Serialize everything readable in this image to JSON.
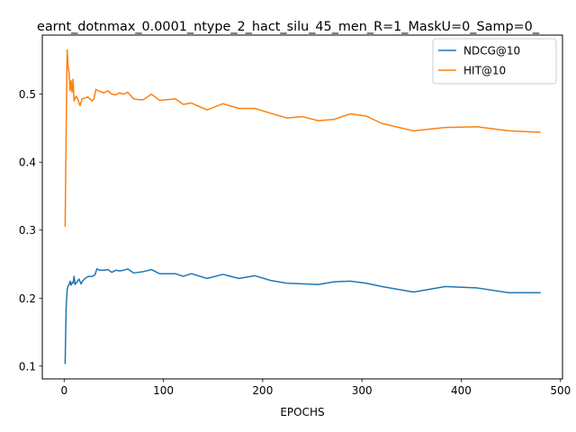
{
  "chart_data": {
    "type": "line",
    "title": "earnt_dotnmax_0.0001_ntype_2_hact_silu_45_men_R=1_MaskU=0_Samp=0_",
    "xlabel": "EPOCHS",
    "ylabel": "",
    "xlim": [
      -22,
      502
    ],
    "ylim": [
      0.0812,
      0.5869
    ],
    "xticks": [
      0,
      100,
      200,
      300,
      400,
      500
    ],
    "yticks": [
      0.1,
      0.2,
      0.3,
      0.4,
      0.5
    ],
    "grid": false,
    "legend_position": "top-right",
    "series": [
      {
        "name": "NDCG@10",
        "color": "#1f77b4",
        "points": [
          [
            1,
            0.103
          ],
          [
            2,
            0.185
          ],
          [
            3,
            0.212
          ],
          [
            4,
            0.218
          ],
          [
            5,
            0.22
          ],
          [
            6,
            0.225
          ],
          [
            7,
            0.219
          ],
          [
            8,
            0.223
          ],
          [
            9,
            0.222
          ],
          [
            10,
            0.232
          ],
          [
            11,
            0.22
          ],
          [
            13,
            0.224
          ],
          [
            15,
            0.228
          ],
          [
            17,
            0.221
          ],
          [
            19,
            0.226
          ],
          [
            22,
            0.23
          ],
          [
            25,
            0.232
          ],
          [
            28,
            0.232
          ],
          [
            31,
            0.234
          ],
          [
            33,
            0.243
          ],
          [
            36,
            0.241
          ],
          [
            40,
            0.241
          ],
          [
            44,
            0.242
          ],
          [
            48,
            0.238
          ],
          [
            52,
            0.241
          ],
          [
            56,
            0.24
          ],
          [
            60,
            0.241
          ],
          [
            64,
            0.243
          ],
          [
            70,
            0.237
          ],
          [
            75,
            0.238
          ],
          [
            80,
            0.239
          ],
          [
            88,
            0.242
          ],
          [
            96,
            0.236
          ],
          [
            112,
            0.236
          ],
          [
            120,
            0.232
          ],
          [
            128,
            0.236
          ],
          [
            144,
            0.229
          ],
          [
            160,
            0.235
          ],
          [
            176,
            0.229
          ],
          [
            192,
            0.233
          ],
          [
            208,
            0.226
          ],
          [
            224,
            0.222
          ],
          [
            240,
            0.221
          ],
          [
            256,
            0.22
          ],
          [
            272,
            0.224
          ],
          [
            288,
            0.225
          ],
          [
            304,
            0.222
          ],
          [
            320,
            0.217
          ],
          [
            352,
            0.209
          ],
          [
            384,
            0.217
          ],
          [
            416,
            0.215
          ],
          [
            448,
            0.208
          ],
          [
            480,
            0.208
          ]
        ]
      },
      {
        "name": "HIT@10",
        "color": "#ff7f0e",
        "points": [
          [
            1,
            0.305
          ],
          [
            2,
            0.44
          ],
          [
            3,
            0.565
          ],
          [
            4,
            0.542
          ],
          [
            5,
            0.53
          ],
          [
            6,
            0.505
          ],
          [
            7,
            0.52
          ],
          [
            8,
            0.503
          ],
          [
            9,
            0.522
          ],
          [
            10,
            0.49
          ],
          [
            12,
            0.497
          ],
          [
            14,
            0.492
          ],
          [
            16,
            0.483
          ],
          [
            18,
            0.493
          ],
          [
            20,
            0.494
          ],
          [
            24,
            0.496
          ],
          [
            28,
            0.49
          ],
          [
            30,
            0.493
          ],
          [
            32,
            0.507
          ],
          [
            36,
            0.504
          ],
          [
            40,
            0.502
          ],
          [
            44,
            0.505
          ],
          [
            48,
            0.5
          ],
          [
            52,
            0.499
          ],
          [
            56,
            0.502
          ],
          [
            60,
            0.5
          ],
          [
            64,
            0.503
          ],
          [
            70,
            0.493
          ],
          [
            75,
            0.492
          ],
          [
            80,
            0.492
          ],
          [
            88,
            0.5
          ],
          [
            96,
            0.491
          ],
          [
            112,
            0.493
          ],
          [
            120,
            0.485
          ],
          [
            128,
            0.487
          ],
          [
            144,
            0.477
          ],
          [
            160,
            0.486
          ],
          [
            176,
            0.479
          ],
          [
            192,
            0.479
          ],
          [
            208,
            0.472
          ],
          [
            224,
            0.465
          ],
          [
            240,
            0.467
          ],
          [
            256,
            0.461
          ],
          [
            272,
            0.463
          ],
          [
            288,
            0.471
          ],
          [
            304,
            0.468
          ],
          [
            320,
            0.457
          ],
          [
            352,
            0.446
          ],
          [
            384,
            0.451
          ],
          [
            416,
            0.452
          ],
          [
            448,
            0.446
          ],
          [
            480,
            0.444
          ]
        ]
      }
    ]
  }
}
